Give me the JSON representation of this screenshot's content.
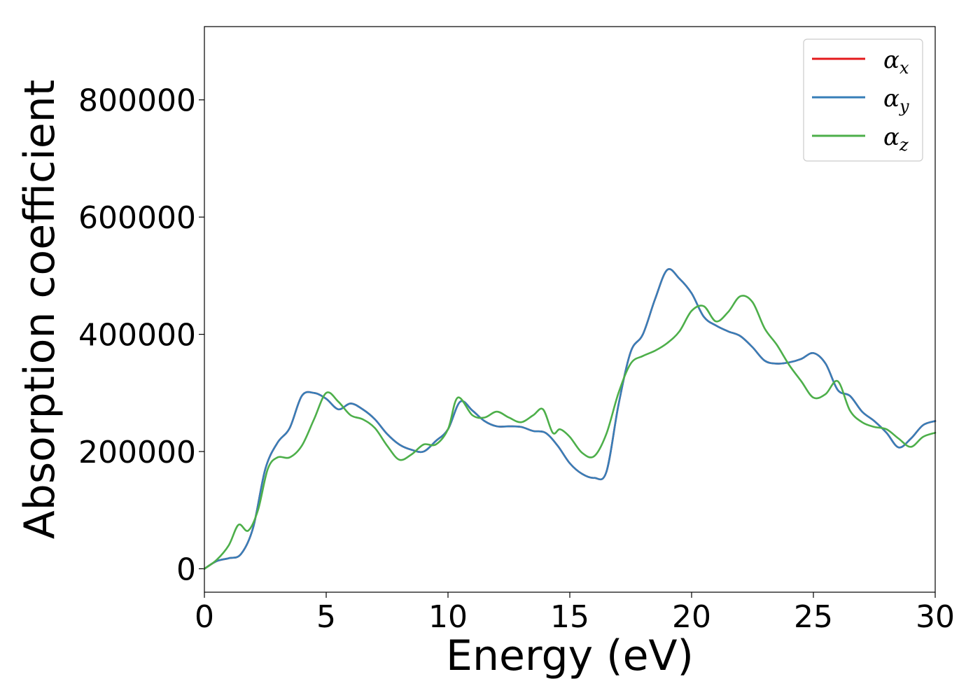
{
  "chart_data": {
    "type": "line",
    "title": "",
    "xlabel": "Energy (eV)",
    "ylabel": "Absorption coefficient",
    "xlim": [
      0,
      30
    ],
    "ylim": [
      -40000,
      925000
    ],
    "xticks": [
      0,
      5,
      10,
      15,
      20,
      25,
      30
    ],
    "yticks": [
      0,
      200000,
      400000,
      600000,
      800000
    ],
    "grid": false,
    "legend": "top-right",
    "series": [
      {
        "name": "α",
        "subscript": "x",
        "color": "#e41a1c",
        "x": [
          0,
          0.5,
          1,
          1.5,
          2,
          2.5,
          3,
          3.5,
          4,
          4.5,
          5,
          5.5,
          6,
          6.5,
          7,
          7.5,
          8,
          8.5,
          9,
          9.5,
          10,
          10.5,
          11,
          11.5,
          12,
          12.5,
          13,
          13.5,
          14,
          14.5,
          15,
          15.5,
          16,
          16.5,
          17,
          17.5,
          18,
          18.5,
          19,
          19.5,
          20,
          20.5,
          21,
          21.5,
          22,
          22.5,
          23,
          23.5,
          24,
          24.5,
          25,
          25.5,
          26,
          26.5,
          27,
          27.5,
          28,
          28.5,
          29,
          29.5,
          30
        ],
        "values": [
          0,
          13000,
          18000,
          25000,
          70000,
          170000,
          215000,
          240000,
          295000,
          300000,
          290000,
          272000,
          282000,
          272000,
          255000,
          230000,
          212000,
          203000,
          200000,
          218000,
          238000,
          285000,
          270000,
          252000,
          243000,
          243000,
          242000,
          235000,
          232000,
          210000,
          180000,
          162000,
          155000,
          165000,
          280000,
          370000,
          400000,
          460000,
          510000,
          495000,
          470000,
          430000,
          415000,
          405000,
          397000,
          378000,
          355000,
          350000,
          352000,
          358000,
          368000,
          350000,
          305000,
          295000,
          268000,
          252000,
          232000,
          207000,
          222000,
          245000,
          252000
        ]
      },
      {
        "name": "α",
        "subscript": "y",
        "color": "#377eb8",
        "x": [
          0,
          0.5,
          1,
          1.5,
          2,
          2.5,
          3,
          3.5,
          4,
          4.5,
          5,
          5.5,
          6,
          6.5,
          7,
          7.5,
          8,
          8.5,
          9,
          9.5,
          10,
          10.5,
          11,
          11.5,
          12,
          12.5,
          13,
          13.5,
          14,
          14.5,
          15,
          15.5,
          16,
          16.5,
          17,
          17.5,
          18,
          18.5,
          19,
          19.5,
          20,
          20.5,
          21,
          21.5,
          22,
          22.5,
          23,
          23.5,
          24,
          24.5,
          25,
          25.5,
          26,
          26.5,
          27,
          27.5,
          28,
          28.5,
          29,
          29.5,
          30
        ],
        "values": [
          0,
          13000,
          18000,
          25000,
          70000,
          170000,
          215000,
          240000,
          295000,
          300000,
          290000,
          272000,
          282000,
          272000,
          255000,
          230000,
          212000,
          203000,
          200000,
          218000,
          238000,
          285000,
          270000,
          252000,
          243000,
          243000,
          242000,
          235000,
          232000,
          210000,
          180000,
          162000,
          155000,
          165000,
          280000,
          370000,
          400000,
          460000,
          510000,
          495000,
          470000,
          430000,
          415000,
          405000,
          397000,
          378000,
          355000,
          350000,
          352000,
          358000,
          368000,
          350000,
          305000,
          295000,
          268000,
          252000,
          232000,
          207000,
          222000,
          245000,
          252000
        ]
      },
      {
        "name": "α",
        "subscript": "z",
        "color": "#4daf4a",
        "x": [
          0,
          0.5,
          1,
          1.4,
          1.8,
          2.2,
          2.6,
          3,
          3.5,
          4,
          4.5,
          5,
          5.5,
          6,
          6.5,
          7,
          7.5,
          8,
          8.5,
          9,
          9.5,
          10,
          10.4,
          11,
          11.5,
          12,
          12.5,
          13,
          13.5,
          13.9,
          14.3,
          14.6,
          15,
          15.5,
          16,
          16.5,
          17,
          17.5,
          18,
          18.5,
          19,
          19.5,
          20,
          20.5,
          21,
          21.5,
          22,
          22.5,
          23,
          23.5,
          24,
          24.5,
          25,
          25.5,
          26,
          26.5,
          27,
          27.5,
          28,
          28.5,
          29,
          29.5,
          30
        ],
        "values": [
          0,
          15000,
          40000,
          75000,
          65000,
          100000,
          170000,
          190000,
          190000,
          210000,
          255000,
          300000,
          285000,
          262000,
          255000,
          240000,
          210000,
          186000,
          195000,
          212000,
          212000,
          238000,
          292000,
          262000,
          258000,
          268000,
          258000,
          250000,
          262000,
          272000,
          232000,
          238000,
          225000,
          198000,
          192000,
          230000,
          300000,
          350000,
          363000,
          372000,
          385000,
          405000,
          440000,
          448000,
          422000,
          438000,
          465000,
          455000,
          410000,
          382000,
          348000,
          320000,
          292000,
          298000,
          320000,
          270000,
          250000,
          242000,
          238000,
          222000,
          208000,
          225000,
          232000
        ]
      }
    ]
  }
}
